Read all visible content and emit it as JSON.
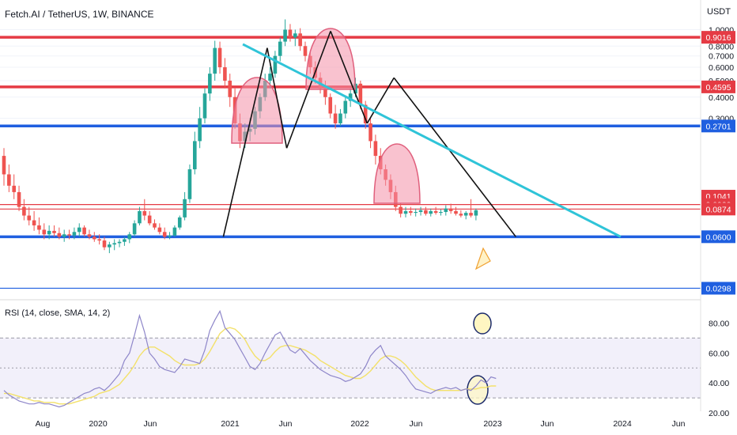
{
  "header": {
    "title": "Fetch.AI / TetherUS, 1W, BINANCE",
    "currency": "USDT"
  },
  "rsi": {
    "title": "RSI (14, close, SMA, 14, 2)",
    "ticks": [
      {
        "v": 80,
        "label": "80.00"
      },
      {
        "v": 60,
        "label": "60.00"
      },
      {
        "v": 40,
        "label": "40.00"
      },
      {
        "v": 20,
        "label": "20.00"
      }
    ],
    "upper_band": 70,
    "lower_band": 30,
    "mid_band": 50
  },
  "colors": {
    "red": "#e53b44",
    "blue": "#1f5fe0",
    "cyan": "#2fc4d8",
    "up": "#26a69a",
    "down": "#ef5350",
    "rsi": "#8e86c9",
    "sma": "#f3e16a"
  },
  "chart_data": [
    {
      "type": "candlestick",
      "title": "Fetch.AI / TetherUS, 1W, BINANCE",
      "yscale": "log",
      "ylabel": "USDT",
      "x_ticks": [
        "Aug",
        "2020",
        "Jun",
        "2021",
        "Jun",
        "2022",
        "Jun",
        "2023",
        "Jun",
        "2024",
        "Jun"
      ],
      "y_ticks": [
        {
          "v": 1.0,
          "label": "1.0000"
        },
        {
          "v": 0.8,
          "label": "0.8000"
        },
        {
          "v": 0.7,
          "label": "0.7000"
        },
        {
          "v": 0.6,
          "label": "0.6000"
        },
        {
          "v": 0.5,
          "label": "0.5000"
        },
        {
          "v": 0.4,
          "label": "0.4000"
        },
        {
          "v": 0.3,
          "label": "0.3000"
        }
      ],
      "horizontal_levels": [
        {
          "v": 0.9016,
          "label": "0.9016",
          "color": "#e53b44",
          "style": "thick"
        },
        {
          "v": 0.4595,
          "label": "0.4595",
          "color": "#e53b44",
          "style": "thick"
        },
        {
          "v": 0.2701,
          "label": "0.2701",
          "color": "#1f5fe0",
          "style": "thick"
        },
        {
          "v": 0.1041,
          "label": "0.1041",
          "color": "#e53b44",
          "style": "label"
        },
        {
          "v": 0.0929,
          "label": "0.0929",
          "color": "#e53b44",
          "style": "thin"
        },
        {
          "v": 0.0874,
          "label": "0.0874",
          "color": "#e53b44",
          "style": "thin"
        },
        {
          "v": 0.06,
          "label": "0.0600",
          "color": "#1f5fe0",
          "style": "thick"
        },
        {
          "v": 0.0298,
          "label": "0.0298",
          "color": "#1f5fe0",
          "style": "thin"
        }
      ],
      "series": [
        {
          "name": "",
          "values": [
            [
              0.18,
              0.2,
              0.12,
              0.14
            ],
            [
              0.14,
              0.16,
              0.11,
              0.12
            ],
            [
              0.12,
              0.14,
              0.1,
              0.11
            ],
            [
              0.11,
              0.12,
              0.085,
              0.09
            ],
            [
              0.09,
              0.1,
              0.075,
              0.08
            ],
            [
              0.08,
              0.09,
              0.07,
              0.075
            ],
            [
              0.075,
              0.085,
              0.065,
              0.07
            ],
            [
              0.07,
              0.078,
              0.062,
              0.066
            ],
            [
              0.066,
              0.072,
              0.058,
              0.062
            ],
            [
              0.062,
              0.07,
              0.058,
              0.065
            ],
            [
              0.065,
              0.07,
              0.06,
              0.063
            ],
            [
              0.063,
              0.068,
              0.058,
              0.06
            ],
            [
              0.06,
              0.066,
              0.056,
              0.062
            ],
            [
              0.062,
              0.066,
              0.058,
              0.061
            ],
            [
              0.061,
              0.068,
              0.058,
              0.064
            ],
            [
              0.064,
              0.072,
              0.06,
              0.068
            ],
            [
              0.068,
              0.07,
              0.06,
              0.062
            ],
            [
              0.062,
              0.066,
              0.058,
              0.06
            ],
            [
              0.06,
              0.064,
              0.056,
              0.058
            ],
            [
              0.058,
              0.062,
              0.054,
              0.057
            ],
            [
              0.057,
              0.06,
              0.05,
              0.052
            ],
            [
              0.052,
              0.056,
              0.048,
              0.054
            ],
            [
              0.054,
              0.058,
              0.05,
              0.055
            ],
            [
              0.055,
              0.058,
              0.052,
              0.056
            ],
            [
              0.056,
              0.06,
              0.053,
              0.058
            ],
            [
              0.058,
              0.064,
              0.055,
              0.062
            ],
            [
              0.062,
              0.075,
              0.06,
              0.072
            ],
            [
              0.072,
              0.09,
              0.07,
              0.085
            ],
            [
              0.085,
              0.1,
              0.075,
              0.08
            ],
            [
              0.08,
              0.085,
              0.07,
              0.072
            ],
            [
              0.072,
              0.076,
              0.066,
              0.068
            ],
            [
              0.068,
              0.072,
              0.062,
              0.064
            ],
            [
              0.064,
              0.068,
              0.058,
              0.06
            ],
            [
              0.06,
              0.064,
              0.058,
              0.061
            ],
            [
              0.061,
              0.07,
              0.06,
              0.068
            ],
            [
              0.068,
              0.08,
              0.066,
              0.078
            ],
            [
              0.078,
              0.11,
              0.075,
              0.1
            ],
            [
              0.1,
              0.16,
              0.095,
              0.15
            ],
            [
              0.15,
              0.25,
              0.14,
              0.22
            ],
            [
              0.22,
              0.35,
              0.2,
              0.3
            ],
            [
              0.3,
              0.45,
              0.28,
              0.42
            ],
            [
              0.42,
              0.6,
              0.38,
              0.55
            ],
            [
              0.55,
              0.86,
              0.5,
              0.78
            ],
            [
              0.78,
              0.85,
              0.55,
              0.6
            ],
            [
              0.6,
              0.68,
              0.45,
              0.5
            ],
            [
              0.5,
              0.55,
              0.35,
              0.4
            ],
            [
              0.4,
              0.45,
              0.26,
              0.28
            ],
            [
              0.28,
              0.32,
              0.2,
              0.22
            ],
            [
              0.22,
              0.28,
              0.2,
              0.25
            ],
            [
              0.25,
              0.3,
              0.22,
              0.26
            ],
            [
              0.26,
              0.35,
              0.24,
              0.33
            ],
            [
              0.33,
              0.42,
              0.3,
              0.4
            ],
            [
              0.4,
              0.55,
              0.38,
              0.5
            ],
            [
              0.5,
              0.6,
              0.45,
              0.55
            ],
            [
              0.55,
              0.75,
              0.52,
              0.7
            ],
            [
              0.7,
              0.9,
              0.65,
              0.85
            ],
            [
              0.85,
              1.15,
              0.8,
              1.0
            ],
            [
              1.0,
              1.08,
              0.85,
              0.9
            ],
            [
              0.9,
              1.0,
              0.8,
              0.95
            ],
            [
              0.95,
              1.02,
              0.75,
              0.8
            ],
            [
              0.8,
              0.85,
              0.65,
              0.7
            ],
            [
              0.7,
              0.75,
              0.55,
              0.6
            ],
            [
              0.6,
              0.65,
              0.48,
              0.52
            ],
            [
              0.52,
              0.56,
              0.42,
              0.45
            ],
            [
              0.45,
              0.5,
              0.36,
              0.4
            ],
            [
              0.4,
              0.42,
              0.3,
              0.32
            ],
            [
              0.32,
              0.36,
              0.26,
              0.28
            ],
            [
              0.28,
              0.34,
              0.27,
              0.32
            ],
            [
              0.32,
              0.4,
              0.3,
              0.38
            ],
            [
              0.38,
              0.45,
              0.35,
              0.42
            ],
            [
              0.42,
              0.52,
              0.4,
              0.48
            ],
            [
              0.48,
              0.5,
              0.34,
              0.36
            ],
            [
              0.36,
              0.38,
              0.26,
              0.28
            ],
            [
              0.28,
              0.3,
              0.2,
              0.22
            ],
            [
              0.22,
              0.24,
              0.16,
              0.18
            ],
            [
              0.18,
              0.2,
              0.14,
              0.15
            ],
            [
              0.15,
              0.16,
              0.12,
              0.13
            ],
            [
              0.13,
              0.14,
              0.1,
              0.11
            ],
            [
              0.11,
              0.12,
              0.085,
              0.09
            ],
            [
              0.09,
              0.095,
              0.078,
              0.082
            ],
            [
              0.082,
              0.09,
              0.078,
              0.085
            ],
            [
              0.085,
              0.09,
              0.08,
              0.083
            ],
            [
              0.083,
              0.088,
              0.079,
              0.084
            ],
            [
              0.084,
              0.09,
              0.08,
              0.086
            ],
            [
              0.086,
              0.09,
              0.08,
              0.082
            ],
            [
              0.082,
              0.088,
              0.079,
              0.085
            ],
            [
              0.085,
              0.09,
              0.081,
              0.083
            ],
            [
              0.083,
              0.087,
              0.08,
              0.084
            ],
            [
              0.084,
              0.092,
              0.08,
              0.088
            ],
            [
              0.088,
              0.094,
              0.082,
              0.085
            ],
            [
              0.085,
              0.09,
              0.08,
              0.082
            ],
            [
              0.082,
              0.086,
              0.078,
              0.08
            ],
            [
              0.08,
              0.085,
              0.076,
              0.083
            ],
            [
              0.083,
              0.1,
              0.078,
              0.08
            ],
            [
              0.08,
              0.088,
              0.075,
              0.086
            ]
          ]
        }
      ],
      "annotations": {
        "trendlines": [
          {
            "from": [
              "2020-11-20",
              0.06
            ],
            "to": [
              "2021-03-26",
              0.78
            ],
            "color": "#111111"
          },
          {
            "from": [
              "2021-03-26",
              0.78
            ],
            "to": [
              "2021-05-21",
              0.2
            ],
            "color": "#111111"
          },
          {
            "from": [
              "2021-05-21",
              0.2
            ],
            "to": [
              "2021-09-24",
              0.98
            ],
            "color": "#111111"
          },
          {
            "from": [
              "2021-09-24",
              0.98
            ],
            "to": [
              "2022-01-07",
              0.28
            ],
            "color": "#111111"
          },
          {
            "from": [
              "2022-01-07",
              0.28
            ],
            "to": [
              "2022-03-25",
              0.52
            ],
            "color": "#111111"
          },
          {
            "from": [
              "2022-03-25",
              0.52
            ],
            "to": [
              "2023-03-10",
              0.06
            ],
            "color": "#111111"
          },
          {
            "from": [
              "2021-01-15",
              0.82
            ],
            "to": [
              "2024-01-05",
              0.06
            ],
            "color": "#2fc4d8"
          }
        ]
      }
    },
    {
      "type": "line",
      "title": "RSI (14, close, SMA, 14, 2)",
      "ylim": [
        15,
        95
      ],
      "series": [
        {
          "name": "",
          "values": [
            35,
            32,
            30,
            28,
            27,
            26,
            26,
            27,
            26,
            26,
            25,
            24,
            25,
            27,
            29,
            31,
            33,
            34,
            36,
            37,
            35,
            38,
            42,
            46,
            55,
            60,
            72,
            85,
            74,
            60,
            56,
            51,
            49,
            48,
            47,
            51,
            56,
            55,
            54,
            53,
            62,
            75,
            82,
            88,
            77,
            73,
            69,
            63,
            57,
            51,
            49,
            53,
            60,
            66,
            72,
            74,
            68,
            62,
            60,
            63,
            59,
            55,
            52,
            49,
            47,
            45,
            44,
            43,
            41,
            42,
            44,
            46,
            51,
            58,
            62,
            65,
            58,
            55,
            52,
            49,
            45,
            40,
            36,
            35,
            34,
            33,
            35,
            36,
            37,
            36,
            37,
            35,
            36,
            35,
            38,
            42,
            40,
            44,
            43
          ]
        },
        {
          "name": "",
          "values": [
            33,
            33,
            32,
            31,
            30,
            29,
            28,
            28,
            27,
            27,
            27,
            26,
            26,
            26,
            27,
            28,
            29,
            30,
            31,
            33,
            34,
            35,
            37,
            39,
            43,
            47,
            52,
            58,
            62,
            64,
            64,
            62,
            60,
            58,
            55,
            53,
            52,
            52,
            52,
            53,
            56,
            61,
            67,
            73,
            76,
            77,
            76,
            73,
            69,
            63,
            58,
            55,
            55,
            57,
            61,
            64,
            65,
            65,
            64,
            63,
            62,
            60,
            58,
            55,
            53,
            51,
            49,
            47,
            45,
            44,
            43,
            43,
            45,
            48,
            52,
            56,
            58,
            58,
            57,
            55,
            52,
            48,
            44,
            41,
            38,
            36,
            35,
            35,
            35,
            35,
            35,
            35,
            36,
            36,
            36,
            37,
            37,
            38,
            38
          ]
        }
      ]
    }
  ]
}
